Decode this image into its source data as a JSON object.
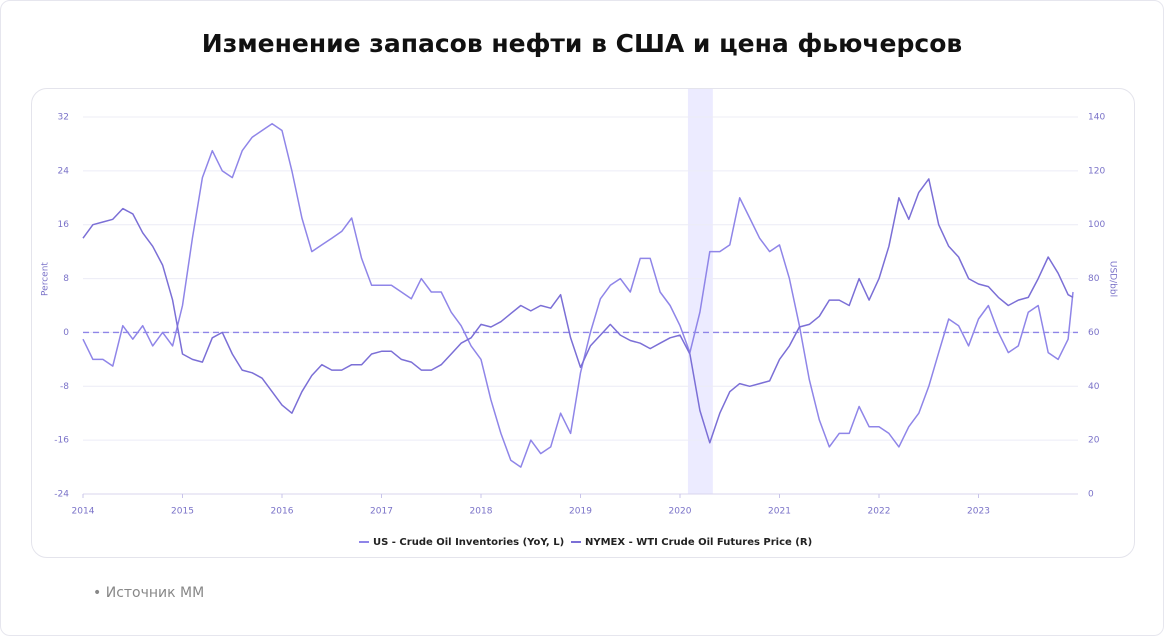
{
  "title": "Изменение запасов нефти в США и цена фьючерсов",
  "source": "Источник ММ",
  "chart_data": {
    "type": "line",
    "y_label": "Percent",
    "y2_label": "USD/bbl",
    "x": [
      2014.0,
      2014.1,
      2014.2,
      2014.3,
      2014.4,
      2014.5,
      2014.6,
      2014.7,
      2014.8,
      2014.9,
      2015.0,
      2015.1,
      2015.2,
      2015.3,
      2015.4,
      2015.5,
      2015.6,
      2015.7,
      2015.8,
      2015.9,
      2016.0,
      2016.1,
      2016.2,
      2016.3,
      2016.4,
      2016.5,
      2016.6,
      2016.7,
      2016.8,
      2016.9,
      2017.0,
      2017.1,
      2017.2,
      2017.3,
      2017.4,
      2017.5,
      2017.6,
      2017.7,
      2017.8,
      2017.9,
      2018.0,
      2018.1,
      2018.2,
      2018.3,
      2018.4,
      2018.5,
      2018.6,
      2018.7,
      2018.8,
      2018.9,
      2019.0,
      2019.1,
      2019.2,
      2019.3,
      2019.4,
      2019.5,
      2019.6,
      2019.7,
      2019.8,
      2019.9,
      2020.0,
      2020.1,
      2020.2,
      2020.3,
      2020.4,
      2020.5,
      2020.6,
      2020.7,
      2020.8,
      2020.9,
      2021.0,
      2021.1,
      2021.2,
      2021.3,
      2021.4,
      2021.5,
      2021.6,
      2021.7,
      2021.8,
      2021.9,
      2022.0,
      2022.1,
      2022.2,
      2022.3,
      2022.4,
      2022.5,
      2022.6,
      2022.7,
      2022.8,
      2022.9,
      2023.0,
      2023.1,
      2023.2,
      2023.3,
      2023.4,
      2023.5,
      2023.6,
      2023.7,
      2023.8,
      2023.9,
      2023.95
    ],
    "series": [
      {
        "name": "US - Crude Oil Inventories (YoY, L)",
        "color": "#8f85e8",
        "axis": "y",
        "values": [
          -1,
          -4,
          -4,
          -5,
          1,
          -1,
          1,
          -2,
          0,
          -2,
          4,
          14,
          23,
          27,
          24,
          23,
          27,
          29,
          30,
          31,
          30,
          24,
          17,
          12,
          13,
          14,
          15,
          17,
          11,
          7,
          7,
          7,
          6,
          5,
          8,
          6,
          6,
          3,
          1,
          -2,
          -4,
          -10,
          -15,
          -19,
          -20,
          -16,
          -18,
          -17,
          -12,
          -15,
          -6,
          0,
          5,
          7,
          8,
          6,
          11,
          11,
          6,
          4,
          1,
          -3,
          3,
          12,
          12,
          13,
          20,
          17,
          14,
          12,
          13,
          8,
          1,
          -7,
          -13,
          -17,
          -15,
          -15,
          -11,
          -14,
          -14,
          -15,
          -17,
          -14,
          -12,
          -8,
          -3,
          2,
          1,
          -2,
          2,
          4,
          0,
          -3,
          -2,
          3,
          4,
          -3,
          -4,
          -1,
          6
        ]
      },
      {
        "name": "NYMEX - WTI Crude Oil Futures Price (R)",
        "color": "#7b6fd6",
        "axis": "y2",
        "values": [
          95,
          100,
          101,
          102,
          106,
          104,
          97,
          92,
          85,
          72,
          52,
          50,
          49,
          58,
          60,
          52,
          46,
          45,
          43,
          38,
          33,
          30,
          38,
          44,
          48,
          46,
          46,
          48,
          48,
          52,
          53,
          53,
          50,
          49,
          46,
          46,
          48,
          52,
          56,
          58,
          63,
          62,
          64,
          67,
          70,
          68,
          70,
          69,
          74,
          58,
          47,
          55,
          59,
          63,
          59,
          57,
          56,
          54,
          56,
          58,
          59,
          52,
          31,
          19,
          30,
          38,
          41,
          40,
          41,
          42,
          50,
          55,
          62,
          63,
          66,
          72,
          72,
          70,
          80,
          72,
          80,
          92,
          110,
          102,
          112,
          117,
          100,
          92,
          88,
          80,
          78,
          77,
          73,
          70,
          72,
          73,
          80,
          88,
          82,
          74,
          73
        ]
      }
    ],
    "xlim": [
      2014,
      2024
    ],
    "xticks": [
      2014,
      2015,
      2016,
      2017,
      2018,
      2019,
      2020,
      2021,
      2022,
      2023
    ],
    "ylim": [
      -24,
      32
    ],
    "yticks": [
      -24,
      -16,
      -8,
      0,
      8,
      16,
      24,
      32
    ],
    "y2lim": [
      0,
      140
    ],
    "y2ticks": [
      0,
      20,
      40,
      60,
      80,
      100,
      120,
      140
    ],
    "grid": true,
    "zero_line": true,
    "shaded_region": [
      2020.08,
      2020.33
    ],
    "legend": "bottom"
  }
}
